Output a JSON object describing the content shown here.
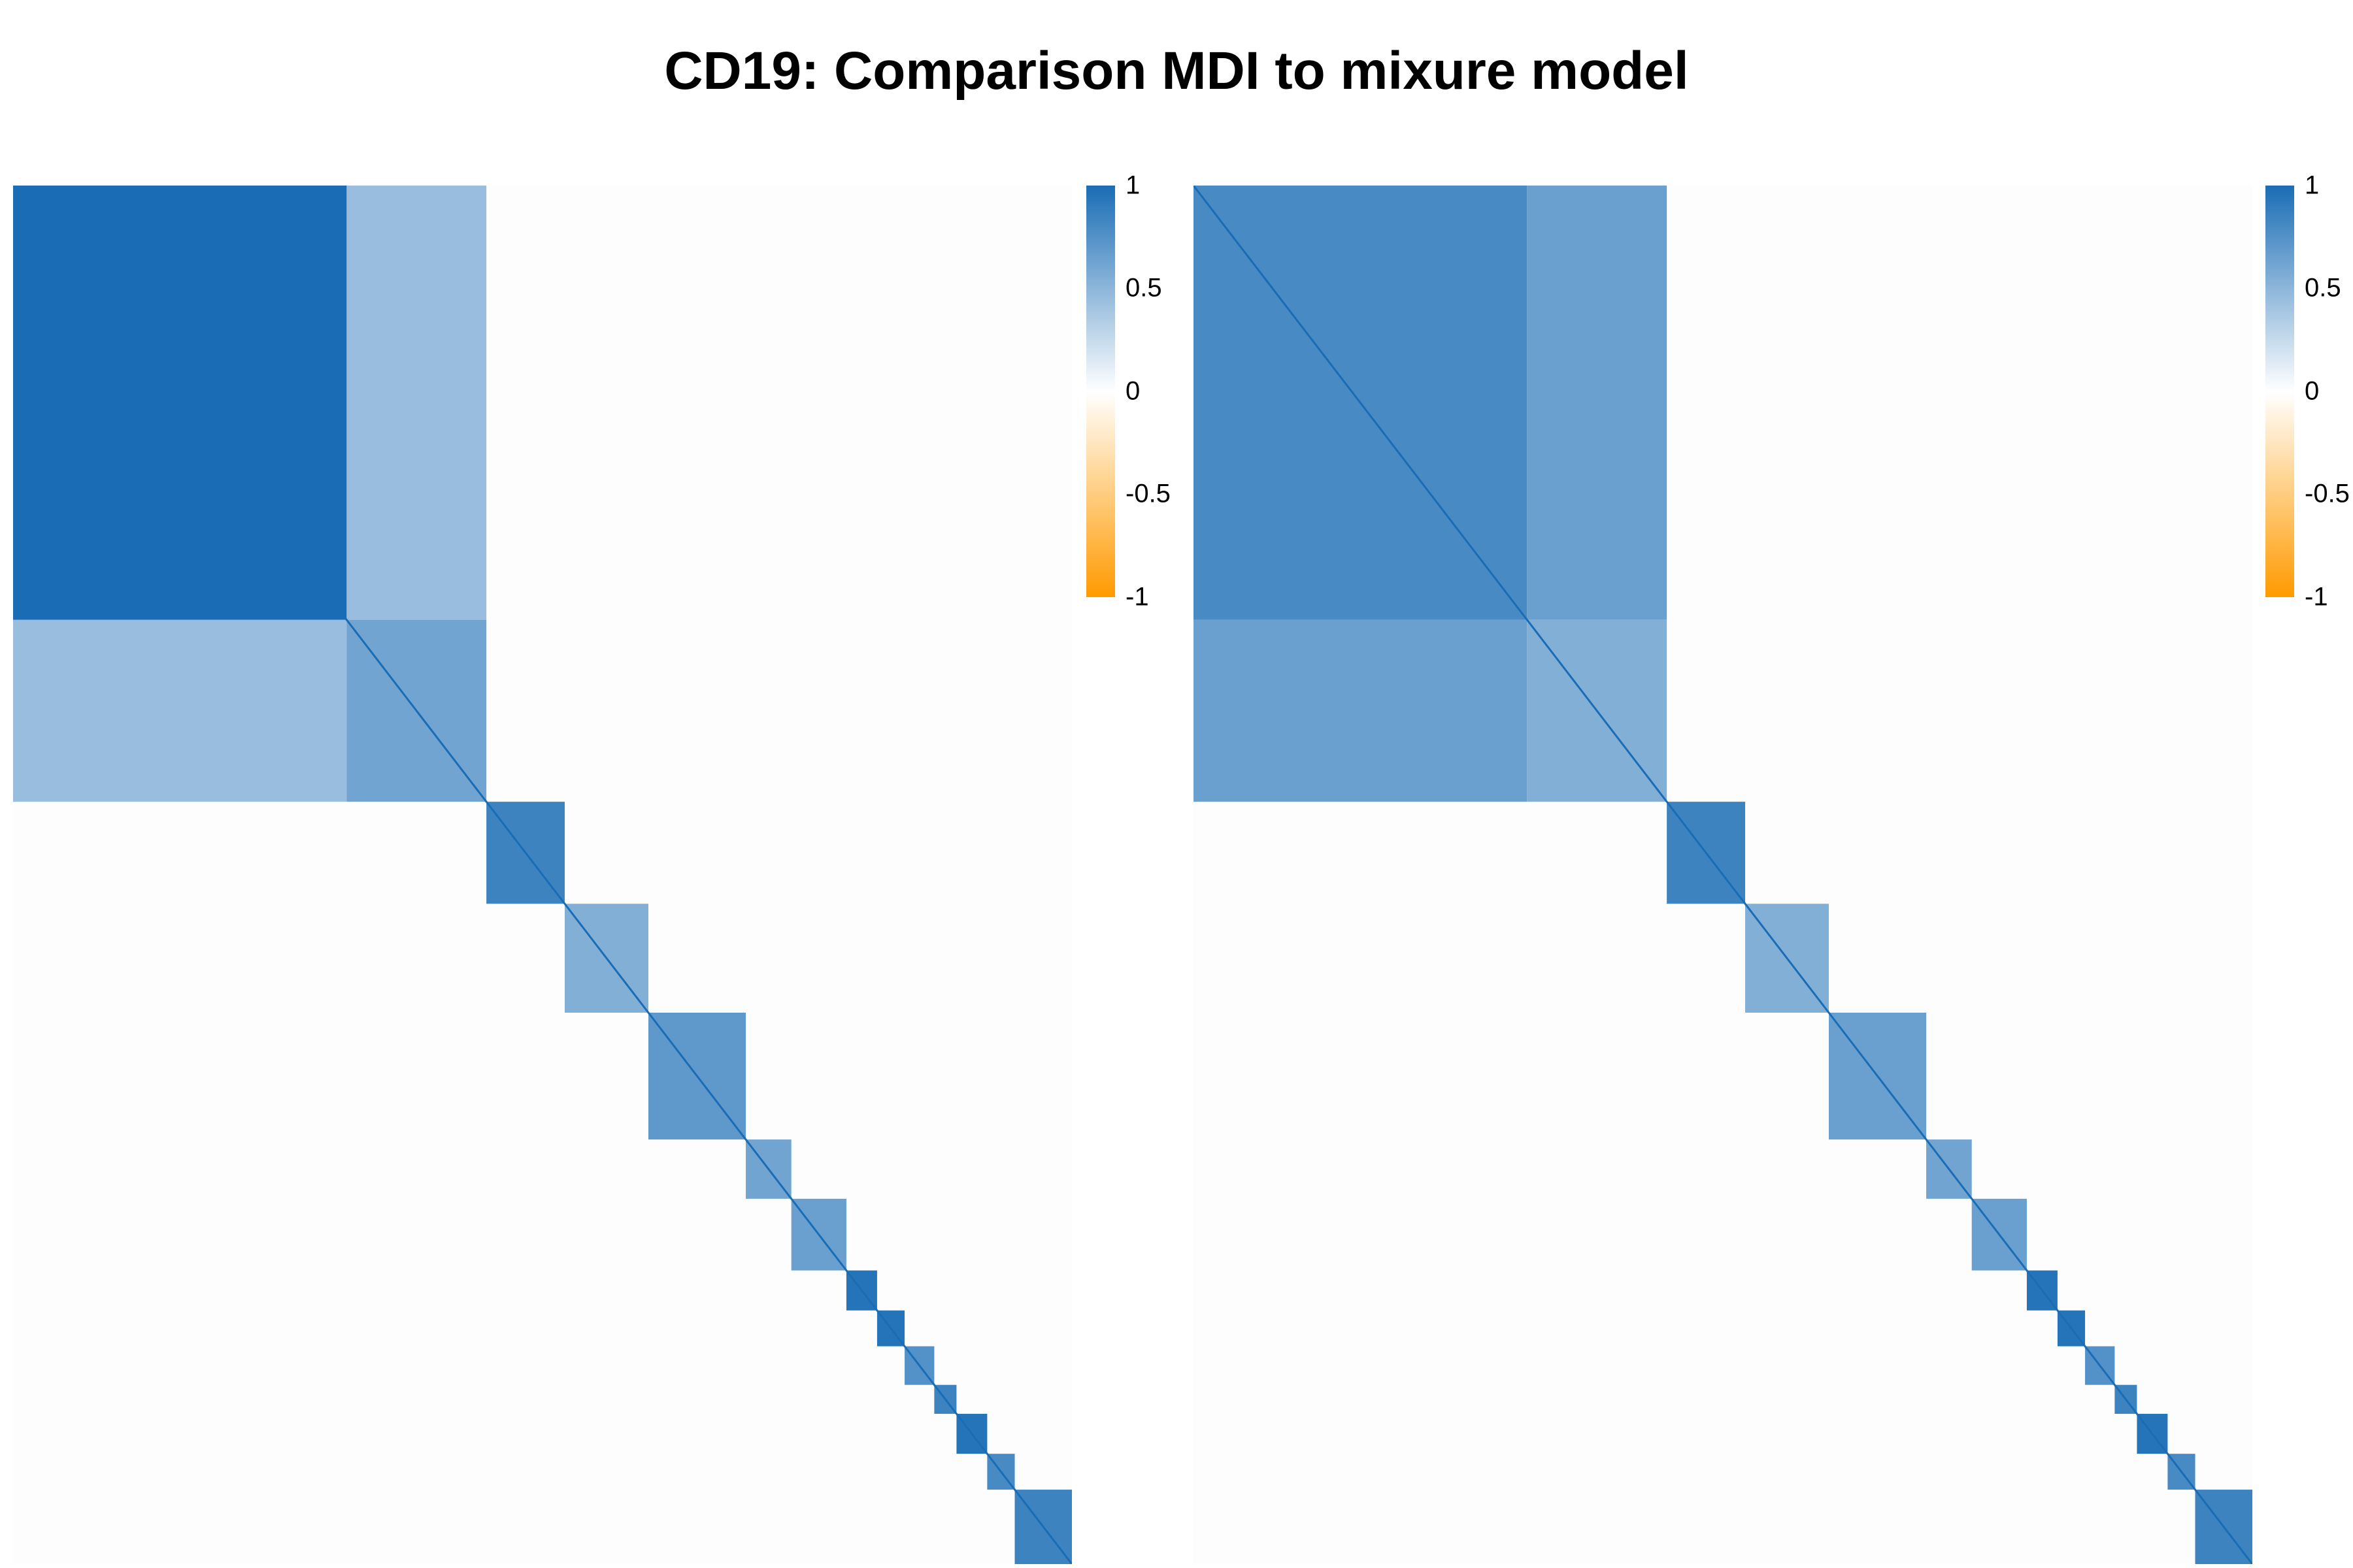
{
  "title": "CD19: Comparison MDI to mixure model",
  "colors": {
    "high": "#1a6db5",
    "zero": "#ffffff",
    "low": "#ff9a00",
    "background": "#fdfdfd"
  },
  "legend": {
    "ticks": [
      "1",
      "0.5",
      "0",
      "-0.5",
      "-1"
    ],
    "values": [
      1,
      0.5,
      0,
      -0.5,
      -1
    ]
  },
  "chart_data": [
    {
      "type": "heatmap",
      "name": "left",
      "scale": [
        -1,
        1
      ],
      "row_clusters": [
        {
          "start": 0.0,
          "end": 0.315,
          "within": 1.0
        },
        {
          "start": 0.315,
          "end": 0.447,
          "within": 0.62
        },
        {
          "start": 0.447,
          "end": 0.521,
          "within": 0.85
        },
        {
          "start": 0.521,
          "end": 0.6,
          "within": 0.55
        },
        {
          "start": 0.6,
          "end": 0.692,
          "within": 0.7
        },
        {
          "start": 0.692,
          "end": 0.735,
          "within": 0.62
        },
        {
          "start": 0.735,
          "end": 0.787,
          "within": 0.65
        },
        {
          "start": 0.787,
          "end": 0.816,
          "within": 0.95
        },
        {
          "start": 0.816,
          "end": 0.842,
          "within": 0.95
        },
        {
          "start": 0.842,
          "end": 0.87,
          "within": 0.75
        },
        {
          "start": 0.87,
          "end": 0.891,
          "within": 0.85
        },
        {
          "start": 0.891,
          "end": 0.92,
          "within": 0.95
        },
        {
          "start": 0.92,
          "end": 0.946,
          "within": 0.8
        },
        {
          "start": 0.946,
          "end": 1.0,
          "within": 0.85
        }
      ],
      "between_top_two": 0.45
    },
    {
      "type": "heatmap",
      "name": "right",
      "scale": [
        -1,
        1
      ],
      "row_clusters": [
        {
          "start": 0.0,
          "end": 0.315,
          "within": 0.8
        },
        {
          "start": 0.315,
          "end": 0.447,
          "within": 0.55
        },
        {
          "start": 0.447,
          "end": 0.521,
          "within": 0.85
        },
        {
          "start": 0.521,
          "end": 0.6,
          "within": 0.55
        },
        {
          "start": 0.6,
          "end": 0.692,
          "within": 0.65
        },
        {
          "start": 0.692,
          "end": 0.735,
          "within": 0.62
        },
        {
          "start": 0.735,
          "end": 0.787,
          "within": 0.65
        },
        {
          "start": 0.787,
          "end": 0.816,
          "within": 0.95
        },
        {
          "start": 0.816,
          "end": 0.842,
          "within": 0.95
        },
        {
          "start": 0.842,
          "end": 0.87,
          "within": 0.75
        },
        {
          "start": 0.87,
          "end": 0.891,
          "within": 0.85
        },
        {
          "start": 0.891,
          "end": 0.92,
          "within": 0.95
        },
        {
          "start": 0.92,
          "end": 0.946,
          "within": 0.8
        },
        {
          "start": 0.946,
          "end": 1.0,
          "within": 0.85
        }
      ],
      "between_top_two": 0.65
    }
  ]
}
